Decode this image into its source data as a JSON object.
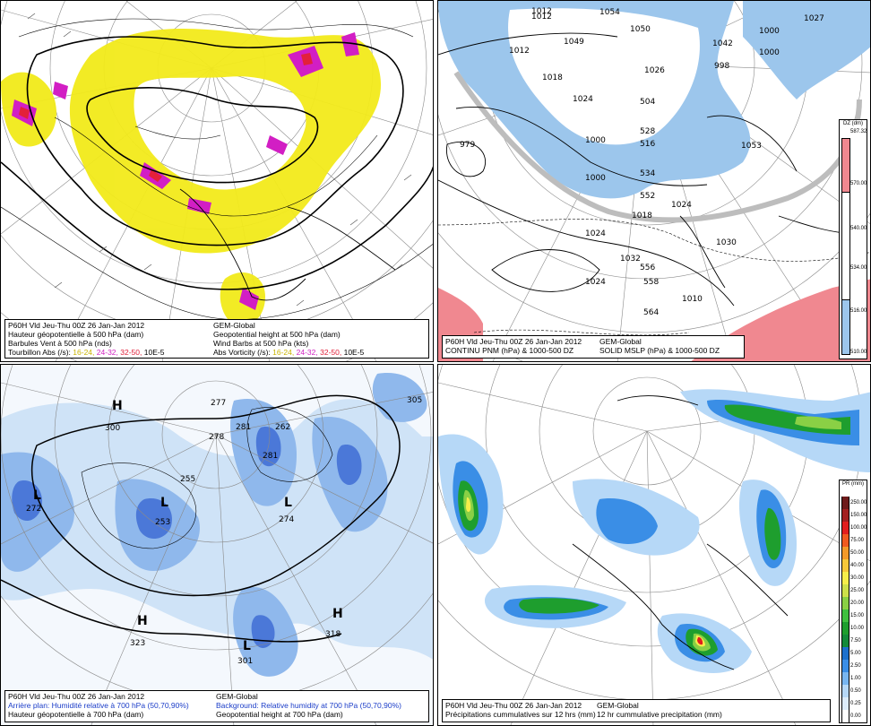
{
  "panels": [
    {
      "id": "p1",
      "caption": {
        "line1_left": "P60H Vld Jeu-Thu 00Z 26 Jan-Jan 2012",
        "line2_left": "Hauteur géopotentielle à 500 hPa (dam)",
        "line3_left": "Barbules Vent à 500 hPa (nds)",
        "line4_left": "Tourbillon Abs (/s):",
        "line1_right": "GEM-Global",
        "line2_right": "Geopotential height at 500 hPa (dam)",
        "line3_right": "Wind Barbs at 500 hPa (kts)",
        "line4_right": "Abs Vorticity (/s):",
        "ranges": [
          "16-24,",
          "24-32,",
          "32-50,",
          "10E-5"
        ]
      },
      "colors": {
        "yellow": "#f2ea1a",
        "magenta": "#d21ec4",
        "red": "#e3203a"
      }
    },
    {
      "id": "p2",
      "caption": {
        "line1_left": "P60H Vld Jeu-Thu 00Z 26 Jan-Jan 2012",
        "line2_left": "CONTINU PNM (hPa) & 1000-500 DZ",
        "line1_right": "GEM-Global",
        "line2_right": "SOLID  MSLP (hPa) & 1000-500 DZ"
      },
      "colorbar": {
        "title": "DZ (dm)",
        "labels": [
          "587.32",
          "570.00",
          "540.00",
          "534.00",
          "516.00",
          "510.00"
        ]
      },
      "labels": {
        "lows": [
          "979",
          "1012",
          "1012",
          "1018",
          "1018",
          "1042",
          "1032",
          "1010",
          "998"
        ],
        "highs": [
          "1049",
          "1050",
          "1053",
          "1030",
          "1026"
        ],
        "boxes": [
          "1012",
          "1054",
          "1027",
          "1000",
          "1000",
          "1024",
          "1000",
          "1000",
          "1024",
          "1024",
          "1024",
          "556",
          "558",
          "564",
          "552",
          "534",
          "528",
          "516",
          "504"
        ]
      },
      "colors": {
        "cold": "#9cc6ec",
        "warm": "#f08890",
        "grey": "#bdbdbd"
      }
    },
    {
      "id": "p3",
      "caption": {
        "line1_left": "P60H Vld Jeu-Thu 00Z 26 Jan-Jan 2012",
        "line2_left": "Arrière plan: Humidité relative à 700 hPa (50,70,90%)",
        "line3_left": "Hauteur géopotentielle à 700 hPa (dam)",
        "line1_right": "GEM-Global",
        "line2_right": "Background: Relative humidity at 700 hPa (50,70,90%)",
        "line3_right": "Geopotential height at 700 hPa (dam)"
      },
      "labels": {
        "highs": [
          "300",
          "323",
          "318",
          "305",
          "281"
        ],
        "lows": [
          "272",
          "253",
          "274",
          "301",
          "255",
          "278",
          "281",
          "277",
          "262"
        ]
      },
      "colors": {
        "rh50": "#cfe3f7",
        "rh70": "#8fb8ec",
        "rh90": "#4b78d8"
      }
    },
    {
      "id": "p4",
      "caption": {
        "line1_left": "P60H Vld Jeu-Thu 00Z 26 Jan-Jan 2012",
        "line2_left": "Précipitations cummulatives sur 12 hrs (mm)",
        "line1_right": "GEM-Global",
        "line2_right": "12 hr cummulative precipitation      (mm)"
      },
      "colorbar": {
        "title": "PR (mm)",
        "labels": [
          "250.00",
          "150.00",
          "100.00",
          "75.00",
          "50.00",
          "40.00",
          "30.00",
          "25.00",
          "20.00",
          "15.00",
          "10.00",
          "7.50",
          "5.00",
          "2.50",
          "1.00",
          "0.50",
          "0.25",
          "0.00"
        ],
        "colors": [
          "#6e1b1b",
          "#a32020",
          "#e21e1e",
          "#f05a20",
          "#f39a2a",
          "#f6c83a",
          "#f6ee4a",
          "#cde04a",
          "#8ad045",
          "#3fbf3f",
          "#1e9e2e",
          "#138a3a",
          "#1c70cc",
          "#3a8ee6",
          "#78b6f0",
          "#b6d8f7",
          "#dcecfb",
          "#ffffff"
        ]
      },
      "colors": {
        "light": "#b6d8f7",
        "mid": "#3a8ee6",
        "green": "#1e9e2e",
        "lgreen": "#8ad045",
        "yellow": "#f6ee4a",
        "orange": "#f39a2a",
        "red": "#e21e1e"
      }
    }
  ]
}
